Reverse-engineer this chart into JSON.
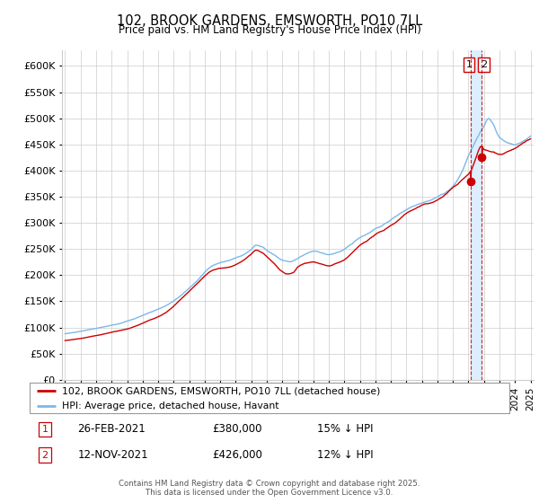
{
  "title": "102, BROOK GARDENS, EMSWORTH, PO10 7LL",
  "subtitle": "Price paid vs. HM Land Registry's House Price Index (HPI)",
  "ylim": [
    0,
    630000
  ],
  "yticks": [
    0,
    50000,
    100000,
    150000,
    200000,
    250000,
    300000,
    350000,
    400000,
    450000,
    500000,
    550000,
    600000
  ],
  "ytick_labels": [
    "£0",
    "£50K",
    "£100K",
    "£150K",
    "£200K",
    "£250K",
    "£300K",
    "£350K",
    "£400K",
    "£450K",
    "£500K",
    "£550K",
    "£600K"
  ],
  "hpi_color": "#7ab8e8",
  "price_color": "#cc0000",
  "vline_color": "#cc0000",
  "shade_color": "#ddeeff",
  "background_color": "#ffffff",
  "grid_color": "#cccccc",
  "legend_label_price": "102, BROOK GARDENS, EMSWORTH, PO10 7LL (detached house)",
  "legend_label_hpi": "HPI: Average price, detached house, Havant",
  "annotation1_date": "26-FEB-2021",
  "annotation1_price": "£380,000",
  "annotation1_note": "15% ↓ HPI",
  "annotation2_date": "12-NOV-2021",
  "annotation2_price": "£426,000",
  "annotation2_note": "12% ↓ HPI",
  "footer": "Contains HM Land Registry data © Crown copyright and database right 2025.\nThis data is licensed under the Open Government Licence v3.0.",
  "sale1_x": 2021.15,
  "sale2_x": 2021.87,
  "sale1_y": 380000,
  "sale2_y": 426000,
  "xlim_left": 1994.8,
  "xlim_right": 2025.2
}
